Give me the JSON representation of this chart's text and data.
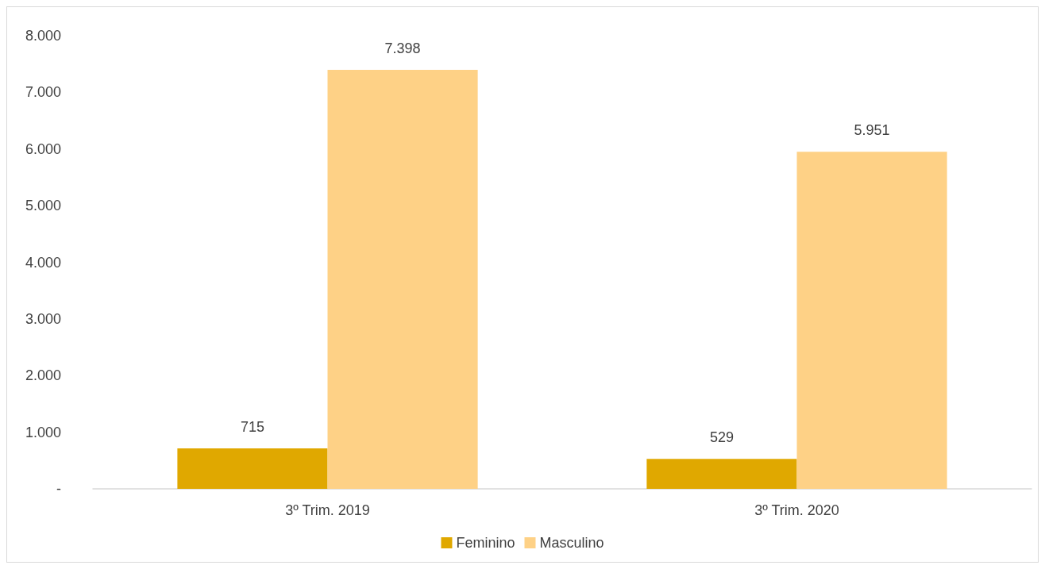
{
  "chart_data": {
    "type": "bar",
    "categories": [
      "3º Trim. 2019",
      "3º Trim. 2020"
    ],
    "series": [
      {
        "name": "Feminino",
        "color": "#e0a800",
        "values": [
          715,
          529
        ],
        "value_labels": [
          "715",
          "529"
        ]
      },
      {
        "name": "Masculino",
        "color": "#fed186",
        "values": [
          7398,
          5951
        ],
        "value_labels": [
          "7.398",
          "5.951"
        ]
      }
    ],
    "ylim": [
      0,
      8000
    ],
    "yticks": [
      {
        "value": 0,
        "label": "-"
      },
      {
        "value": 1000,
        "label": "1.000"
      },
      {
        "value": 2000,
        "label": "2.000"
      },
      {
        "value": 3000,
        "label": "3.000"
      },
      {
        "value": 4000,
        "label": "4.000"
      },
      {
        "value": 5000,
        "label": "5.000"
      },
      {
        "value": 6000,
        "label": "6.000"
      },
      {
        "value": 7000,
        "label": "7.000"
      },
      {
        "value": 8000,
        "label": "8.000"
      }
    ],
    "grid": false,
    "legend": "bottom"
  }
}
